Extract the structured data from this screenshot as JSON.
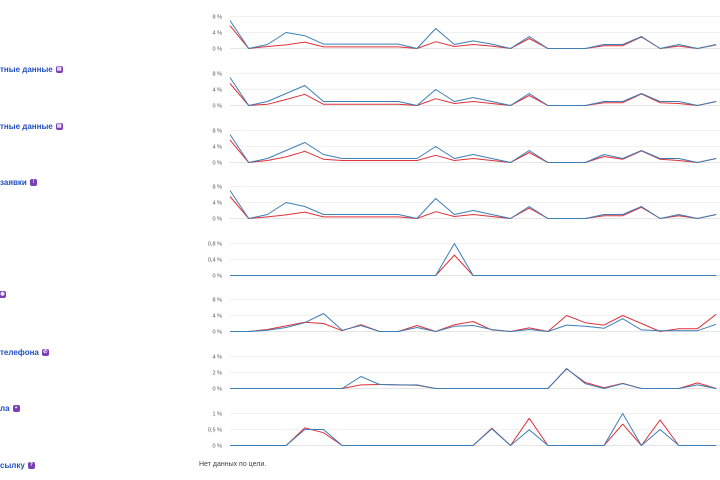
{
  "colors": {
    "series_a": "#3d7fb5",
    "series_b": "#e0313a",
    "grid": "#ececec",
    "label": "#1f4fc2",
    "icon": "#7b3fb5"
  },
  "goals": [
    {
      "label": "тные данные",
      "icon": "form-icon",
      "glyph": "▤"
    },
    {
      "label": "тные данные",
      "icon": "form-icon",
      "glyph": "▤"
    },
    {
      "label": "заявки",
      "icon": "info-icon",
      "glyph": "!"
    },
    {
      "label": "",
      "icon": "goal-icon",
      "glyph": "◉"
    },
    {
      "label": "телефона",
      "icon": "phone-icon",
      "glyph": "✆"
    },
    {
      "label": "ла",
      "icon": "goal-icon",
      "glyph": "+"
    },
    {
      "label": "сылку",
      "icon": "link-icon",
      "glyph": "?"
    }
  ],
  "no_data_text": "Нет данных по цели.",
  "chart_data": [
    {
      "type": "line",
      "ticks": [
        "0 %",
        "4 %",
        "8 %"
      ],
      "ylim": [
        0,
        8
      ],
      "series": [
        {
          "name": "a",
          "values": [
            7.0,
            0,
            1.0,
            4.0,
            3.2,
            1.1,
            1.1,
            1.1,
            1.1,
            1.1,
            0,
            5.0,
            1.0,
            1.9,
            1.1,
            0,
            3.0,
            0,
            0,
            0,
            1.0,
            1.0,
            3.0,
            0,
            1.0,
            0,
            1.0
          ]
        },
        {
          "name": "b",
          "values": [
            5.7,
            0,
            0.5,
            0.9,
            1.6,
            0.4,
            0.4,
            0.4,
            0.4,
            0.4,
            0,
            1.7,
            0.5,
            1.0,
            0.6,
            0,
            2.5,
            0,
            0,
            0,
            0.7,
            0.7,
            2.9,
            0,
            0.6,
            0,
            0.9
          ]
        }
      ]
    },
    {
      "type": "line",
      "ticks": [
        "0 %",
        "4 %",
        "8 %"
      ],
      "ylim": [
        0,
        8
      ],
      "series": [
        {
          "name": "a",
          "values": [
            7.0,
            0,
            1.0,
            3.0,
            5.0,
            1.0,
            1.0,
            1.0,
            1.0,
            1.0,
            0,
            4.0,
            1.0,
            2.0,
            1.0,
            0,
            3.0,
            0,
            0,
            0,
            1.0,
            1.0,
            3.0,
            1.0,
            1.0,
            0,
            1.0
          ]
        },
        {
          "name": "b",
          "values": [
            5.5,
            0,
            0.3,
            1.5,
            2.8,
            0.3,
            0.3,
            0.3,
            0.3,
            0.3,
            0,
            1.7,
            0.5,
            1.0,
            0.5,
            0,
            2.5,
            0,
            0,
            0,
            0.7,
            0.7,
            2.9,
            0.7,
            0.5,
            0,
            1.0
          ]
        }
      ]
    },
    {
      "type": "line",
      "ticks": [
        "0 %",
        "4 %",
        "8 %"
      ],
      "ylim": [
        0,
        8
      ],
      "series": [
        {
          "name": "a",
          "values": [
            7.0,
            0,
            1.0,
            3.0,
            5.0,
            2.0,
            1.0,
            1.0,
            1.0,
            1.0,
            1.0,
            4.0,
            1.0,
            2.0,
            1.0,
            0,
            3.0,
            0,
            0,
            0,
            2.0,
            1.0,
            3.0,
            1.0,
            1.0,
            0,
            1.0
          ]
        },
        {
          "name": "b",
          "values": [
            5.6,
            0,
            0.5,
            1.4,
            2.8,
            0.8,
            0.5,
            0.5,
            0.5,
            0.5,
            0.5,
            1.8,
            0.5,
            1.0,
            0.5,
            0,
            2.5,
            0,
            0,
            0,
            1.5,
            0.8,
            2.9,
            0.8,
            0.5,
            0,
            1.0
          ]
        }
      ]
    },
    {
      "type": "line",
      "ticks": [
        "0 %",
        "4 %",
        "8 %"
      ],
      "ylim": [
        0,
        8
      ],
      "series": [
        {
          "name": "a",
          "values": [
            7.0,
            0,
            1.0,
            4.0,
            3.0,
            1.0,
            1.0,
            1.0,
            1.0,
            1.0,
            0,
            5.0,
            1.0,
            2.0,
            1.0,
            0,
            3.0,
            0,
            0,
            0,
            1.0,
            1.0,
            3.0,
            0,
            1.0,
            0,
            1.0
          ]
        },
        {
          "name": "b",
          "values": [
            5.5,
            0,
            0.4,
            0.9,
            1.6,
            0.4,
            0.4,
            0.4,
            0.4,
            0.4,
            0,
            1.7,
            0.5,
            1.0,
            0.5,
            0,
            2.6,
            0,
            0,
            0,
            0.7,
            0.7,
            2.8,
            0,
            0.7,
            0,
            1.0
          ]
        }
      ]
    },
    {
      "type": "line",
      "ticks": [
        "0 %",
        "0,4 %",
        "0,8 %"
      ],
      "ylim": [
        0,
        0.8
      ],
      "series": [
        {
          "name": "a",
          "values": [
            0,
            0,
            0,
            0,
            0,
            0,
            0,
            0,
            0,
            0,
            0,
            0,
            0.8,
            0,
            0,
            0,
            0,
            0,
            0,
            0,
            0,
            0,
            0,
            0,
            0,
            0,
            0
          ]
        },
        {
          "name": "b",
          "values": [
            0,
            0,
            0,
            0,
            0,
            0,
            0,
            0,
            0,
            0,
            0,
            0,
            0.51,
            0,
            0,
            0,
            0,
            0,
            0,
            0,
            0,
            0,
            0,
            0,
            0,
            0,
            0
          ]
        }
      ]
    },
    {
      "type": "line",
      "ticks": [
        "0 %",
        "4 %",
        "8 %"
      ],
      "ylim": [
        0,
        8
      ],
      "series": [
        {
          "name": "a",
          "values": [
            0,
            0,
            0.3,
            1.0,
            2.2,
            4.5,
            0.3,
            1.5,
            0,
            0,
            1.0,
            0,
            1.3,
            1.5,
            0.5,
            0,
            0.5,
            0,
            1.6,
            1.3,
            0.8,
            3.2,
            0.4,
            0.2,
            0.2,
            0.2,
            1.8
          ]
        },
        {
          "name": "b",
          "values": [
            0,
            0,
            0.5,
            1.4,
            2.3,
            2.0,
            0.2,
            1.7,
            0,
            0,
            1.5,
            0,
            1.7,
            2.5,
            0.4,
            0,
            0.9,
            0,
            4.0,
            2.2,
            1.6,
            4.0,
            2.0,
            0,
            0.7,
            0.7,
            4.3
          ]
        }
      ]
    },
    {
      "type": "line",
      "ticks": [
        "0 %",
        "2 %",
        "4 %"
      ],
      "ylim": [
        0,
        4
      ],
      "series": [
        {
          "name": "a",
          "values": [
            0,
            0,
            0,
            0,
            0,
            0,
            0,
            1.5,
            0.5,
            0.45,
            0.45,
            0,
            0,
            0,
            0,
            0,
            0,
            0,
            2.5,
            0.6,
            0,
            0.6,
            0,
            0,
            0,
            0.45,
            0
          ]
        },
        {
          "name": "b",
          "values": [
            0,
            0,
            0,
            0,
            0,
            0,
            0,
            0.45,
            0.5,
            0.45,
            0.4,
            0,
            0,
            0,
            0,
            0,
            0,
            0,
            2.45,
            0.75,
            0.1,
            0.65,
            0,
            0,
            0,
            0.7,
            0
          ]
        }
      ]
    },
    {
      "type": "line",
      "ticks": [
        "0 %",
        "0,5 %",
        "1 %"
      ],
      "ylim": [
        0,
        1
      ],
      "series": [
        {
          "name": "a",
          "values": [
            0,
            0,
            0,
            0,
            0.5,
            0.5,
            0,
            0,
            0,
            0,
            0,
            0,
            0,
            0,
            0.52,
            0,
            0.49,
            0,
            0,
            0,
            0,
            1.0,
            0,
            0.5,
            0,
            0,
            0
          ]
        },
        {
          "name": "b",
          "values": [
            0,
            0,
            0,
            0,
            0.55,
            0.4,
            0,
            0,
            0,
            0,
            0,
            0,
            0,
            0,
            0.54,
            0,
            0.85,
            0,
            0,
            0,
            0,
            0.67,
            0,
            0.8,
            0,
            0,
            0
          ]
        }
      ]
    }
  ]
}
